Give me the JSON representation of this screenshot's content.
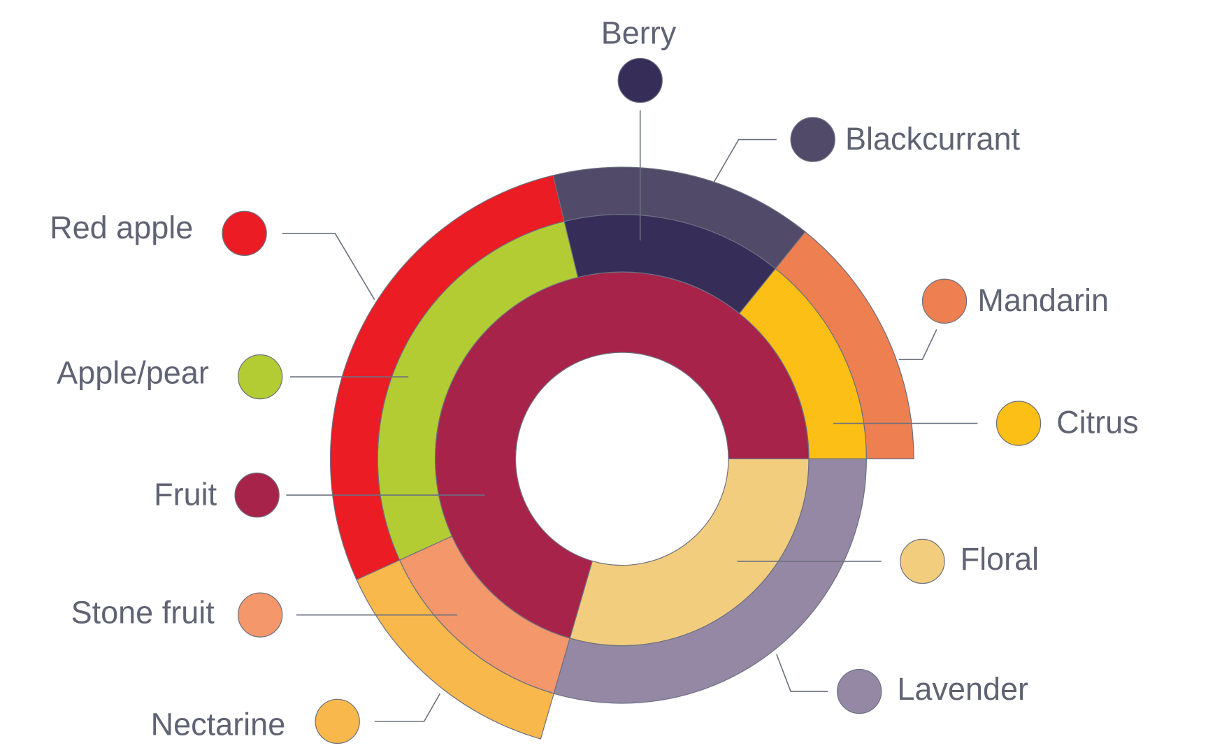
{
  "chart_data": {
    "type": "sunburst",
    "nodes": [
      {
        "name": "Fruit",
        "color": "#a8234a",
        "value": 70.5,
        "children": [
          {
            "name": "Citrus",
            "color": "#fbbf15",
            "value": 14.2,
            "children": [
              {
                "name": "Mandarin",
                "color": "#ed7f50",
                "value": 14.2
              }
            ]
          },
          {
            "name": "Berry",
            "color": "#362d58",
            "value": 14.6,
            "children": [
              {
                "name": "Blackcurrant",
                "color": "#514a68",
                "value": 14.6
              }
            ]
          },
          {
            "name": "Apple/pear",
            "color": "#b3cc34",
            "value": 28,
            "children": [
              {
                "name": "Red apple",
                "color": "#eb1c24",
                "value": 28
              }
            ]
          },
          {
            "name": "Stone fruit",
            "color": "#f4976b",
            "value": 13.7,
            "children": [
              {
                "name": "Nectarine",
                "color": "#f9b84b",
                "value": 13.7
              }
            ]
          }
        ]
      },
      {
        "name": "Floral",
        "color": "#f3cd7e",
        "value": 29.5,
        "children": [
          {
            "name": "Lavender",
            "color": "#9588a5",
            "value": 29.5
          }
        ]
      }
    ]
  }
}
